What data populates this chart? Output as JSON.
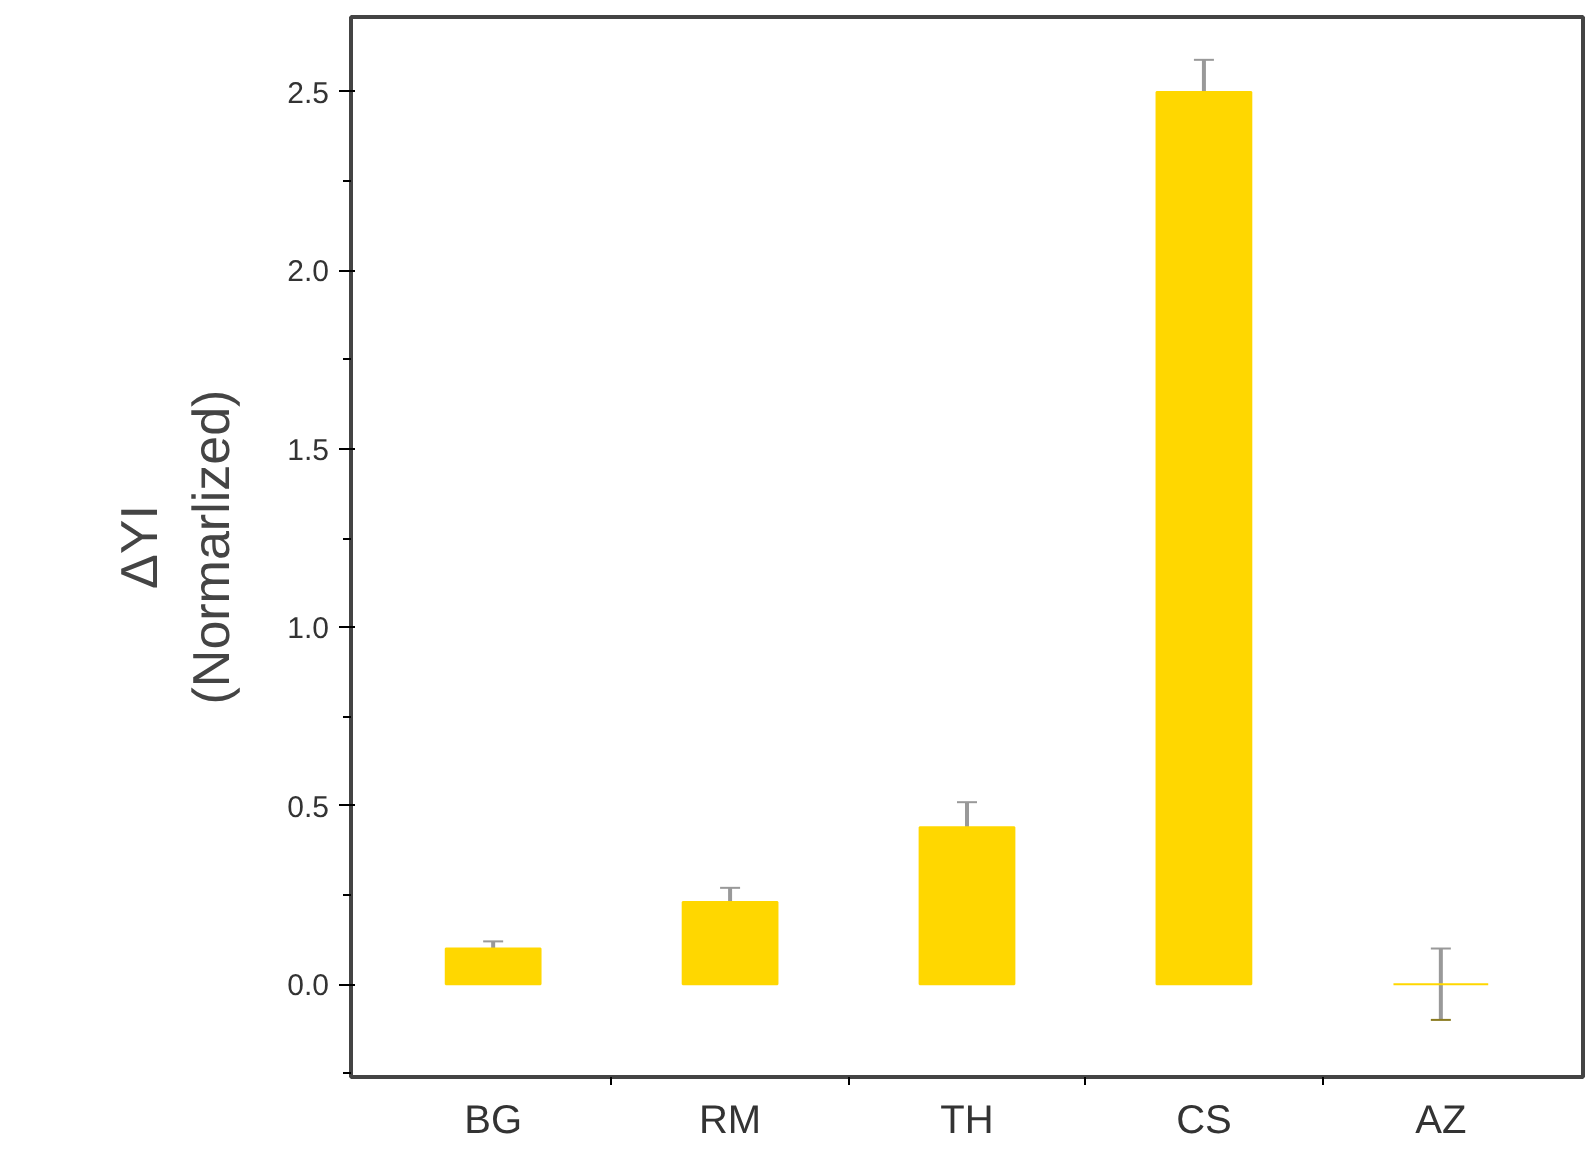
{
  "chart_data": {
    "type": "bar",
    "ylabel": "ΔYI\n(Normarlized)",
    "categories": [
      "BG",
      "RM",
      "TH",
      "CS",
      "AZ"
    ],
    "values": [
      0.1,
      0.23,
      0.44,
      2.5,
      0.0
    ],
    "errors": [
      0.02,
      0.04,
      0.07,
      0.09,
      0.1
    ],
    "color": "#ffd700",
    "ylim": [
      -0.26,
      2.71
    ],
    "yticks": [
      {
        "value": 0,
        "label": "0.0"
      },
      0.5,
      {
        "value": 1,
        "label": "1.0"
      },
      1.5,
      {
        "value": 2,
        "label": "2.0"
      },
      2.5
    ],
    "grid": false
  }
}
